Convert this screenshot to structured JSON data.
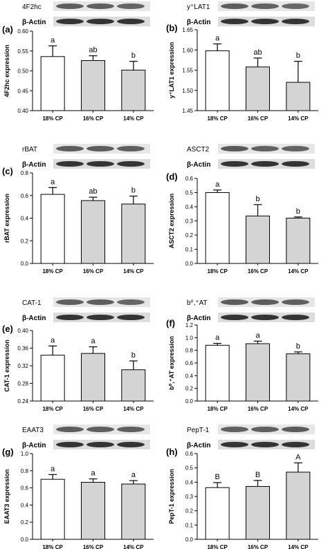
{
  "figure": {
    "actin_label": "β-Actin",
    "colors": {
      "bar_first": "#ffffff",
      "bar_rest": "#d4d4d4",
      "stroke": "#000000",
      "blot_dark": "#161616"
    },
    "panels": [
      {
        "id": "a",
        "panel_label": "(a)",
        "protein_label": "4F2hc",
        "chart_data": {
          "type": "bar",
          "categories": [
            "18% CP",
            "16% CP",
            "14% CP"
          ],
          "values": [
            0.536,
            0.526,
            0.502
          ],
          "errors": [
            0.027,
            0.012,
            0.022
          ],
          "letters": [
            "a",
            "ab",
            "b"
          ],
          "ylabel": "4F2hc expression",
          "ylim": [
            0.4,
            0.6
          ],
          "yticks": [
            "0.40",
            "0.45",
            "0.50",
            "0.55",
            "0.60"
          ]
        }
      },
      {
        "id": "b",
        "panel_label": "(b)",
        "protein_label": "y⁺LAT1",
        "chart_data": {
          "type": "bar",
          "categories": [
            "18% CP",
            "16% CP",
            "14% CP"
          ],
          "values": [
            1.598,
            1.558,
            1.52
          ],
          "errors": [
            0.017,
            0.022,
            0.052
          ],
          "letters": [
            "a",
            "ab",
            "b"
          ],
          "ylabel": "y⁺LAT1 expression",
          "ylim": [
            1.45,
            1.65
          ],
          "yticks": [
            "1.45",
            "1.50",
            "1.55",
            "1.60",
            "1.65"
          ]
        }
      },
      {
        "id": "c",
        "panel_label": "(c)",
        "protein_label": "rBAT",
        "chart_data": {
          "type": "bar",
          "categories": [
            "18% CP",
            "16% CP",
            "14% CP"
          ],
          "values": [
            0.61,
            0.555,
            0.525
          ],
          "errors": [
            0.06,
            0.03,
            0.07
          ],
          "letters": [
            "a",
            "ab",
            "b"
          ],
          "ylabel": "rBAT expression",
          "ylim": [
            0.0,
            0.8
          ],
          "yticks": [
            "0.0",
            "0.2",
            "0.4",
            "0.6",
            "0.8"
          ]
        }
      },
      {
        "id": "d",
        "panel_label": "(d)",
        "protein_label": "ASCT2",
        "chart_data": {
          "type": "bar",
          "categories": [
            "18% CP",
            "16% CP",
            "14% CP"
          ],
          "values": [
            0.5,
            0.335,
            0.32
          ],
          "errors": [
            0.018,
            0.08,
            0.008
          ],
          "letters": [
            "a",
            "b",
            "b"
          ],
          "ylabel": "ASCT2 expression",
          "ylim": [
            0.0,
            0.6
          ],
          "yticks": [
            "0.0",
            "0.1",
            "0.2",
            "0.3",
            "0.4",
            "0.5",
            "0.6"
          ]
        }
      },
      {
        "id": "e",
        "panel_label": "(e)",
        "protein_label": "CAT-1",
        "chart_data": {
          "type": "bar",
          "categories": [
            "18% CP",
            "16% CP",
            "14% CP"
          ],
          "values": [
            0.344,
            0.348,
            0.311
          ],
          "errors": [
            0.021,
            0.015,
            0.02
          ],
          "letters": [
            "a",
            "a",
            "b"
          ],
          "ylabel": "CAT-1 expression",
          "ylim": [
            0.24,
            0.4
          ],
          "yticks": [
            "0.24",
            "0.28",
            "0.32",
            "0.36",
            "0.40"
          ]
        }
      },
      {
        "id": "f",
        "panel_label": "(f)",
        "protein_label": "b⁰,⁺AT",
        "chart_data": {
          "type": "bar",
          "categories": [
            "18% CP",
            "16% CP",
            "14% CP"
          ],
          "values": [
            0.88,
            0.905,
            0.745
          ],
          "errors": [
            0.03,
            0.04,
            0.03
          ],
          "letters": [
            "a",
            "a",
            "b"
          ],
          "ylabel": "b⁰,⁺AT expression",
          "ylim": [
            0.0,
            1.2
          ],
          "yticks": [
            "0.0",
            "0.2",
            "0.4",
            "0.6",
            "0.8",
            "1.0",
            "1.2"
          ]
        }
      },
      {
        "id": "g",
        "panel_label": "(g)",
        "protein_label": "EAAT3",
        "chart_data": {
          "type": "bar",
          "categories": [
            "18% CP",
            "16% CP",
            "14% CP"
          ],
          "values": [
            0.7,
            0.665,
            0.645
          ],
          "errors": [
            0.055,
            0.04,
            0.04
          ],
          "letters": [
            "a",
            "a",
            "a"
          ],
          "ylabel": "EAAT3 expression",
          "ylim": [
            0.0,
            1.0
          ],
          "yticks": [
            "0.0",
            "0.2",
            "0.4",
            "0.6",
            "0.8",
            "1.0"
          ]
        }
      },
      {
        "id": "h",
        "panel_label": "(h)",
        "protein_label": "PepT-1",
        "chart_data": {
          "type": "bar",
          "categories": [
            "18% CP",
            "16% CP",
            "14% CP"
          ],
          "values": [
            0.362,
            0.37,
            0.47
          ],
          "errors": [
            0.035,
            0.042,
            0.065
          ],
          "letters": [
            "B",
            "B",
            "A"
          ],
          "ylabel": "PepT-1 expression",
          "ylim": [
            0.0,
            0.6
          ],
          "yticks": [
            "0.0",
            "0.1",
            "0.2",
            "0.3",
            "0.4",
            "0.5",
            "0.6"
          ]
        }
      }
    ]
  }
}
